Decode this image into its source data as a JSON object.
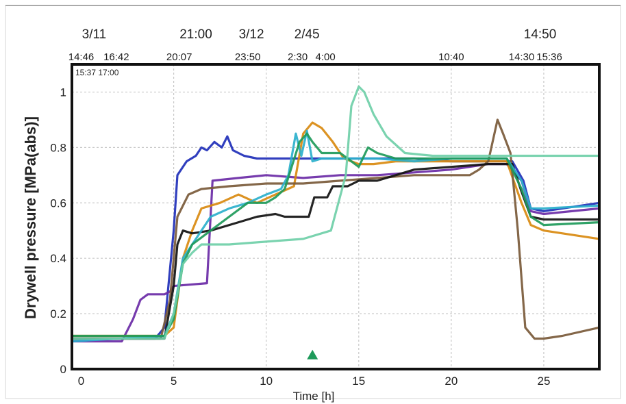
{
  "chart_data": {
    "type": "line",
    "title": "",
    "xlabel": "Time [h]",
    "ylabel": "Drywell pressure [MPa(abs)]",
    "xlim": [
      -0.5,
      28
    ],
    "ylim": [
      0,
      1.1
    ],
    "xticks": [
      0,
      5,
      10,
      15,
      20,
      25
    ],
    "yticks": [
      0,
      0.2,
      0.4,
      0.6,
      0.8,
      1
    ],
    "grid": true,
    "top_labels_row1": [
      {
        "text": "3/11",
        "x": 0.7
      },
      {
        "text": "21:00",
        "x": 6.2
      },
      {
        "text": "3/12",
        "x": 9.2
      },
      {
        "text": "2/45",
        "x": 12.2
      },
      {
        "text": "14:50",
        "x": 24.8
      }
    ],
    "top_labels_row2": [
      {
        "text": "14:46",
        "x": 0.0
      },
      {
        "text": "16:42",
        "x": 1.9
      },
      {
        "text": "20:07",
        "x": 5.3
      },
      {
        "text": "23:50",
        "x": 9.0
      },
      {
        "text": "2:30",
        "x": 11.7
      },
      {
        "text": "4:00",
        "x": 13.2
      },
      {
        "text": "10:40",
        "x": 20.0
      },
      {
        "text": "14:30",
        "x": 23.8
      },
      {
        "text": "15:36",
        "x": 25.3
      }
    ],
    "inner_label": "15:37 17:00",
    "series": [
      {
        "color": "#1f2fb8",
        "x": [
          -0.5,
          4,
          4.5,
          5,
          5.2,
          5.7,
          6.2,
          6.5,
          6.8,
          7.2,
          7.6,
          7.9,
          8.2,
          8.8,
          9.5,
          12,
          14,
          16,
          18,
          20,
          22,
          23.3,
          23.9,
          24.3,
          25,
          26,
          28
        ],
        "y": [
          0.11,
          0.11,
          0.15,
          0.5,
          0.7,
          0.75,
          0.77,
          0.8,
          0.79,
          0.82,
          0.8,
          0.84,
          0.79,
          0.77,
          0.76,
          0.76,
          0.76,
          0.76,
          0.76,
          0.75,
          0.75,
          0.75,
          0.68,
          0.58,
          0.57,
          0.58,
          0.6
        ]
      },
      {
        "color": "#6a2aa6",
        "x": [
          -0.5,
          2.2,
          2.8,
          3.2,
          3.6,
          4.5,
          4.8,
          5,
          6.8,
          7.1,
          8.5,
          10,
          12,
          14,
          16,
          18,
          20,
          22,
          23,
          23.8,
          24.3,
          25,
          28
        ],
        "y": [
          0.1,
          0.1,
          0.18,
          0.25,
          0.27,
          0.27,
          0.28,
          0.3,
          0.31,
          0.68,
          0.69,
          0.7,
          0.69,
          0.7,
          0.7,
          0.71,
          0.72,
          0.74,
          0.74,
          0.68,
          0.57,
          0.56,
          0.58
        ]
      },
      {
        "color": "#d98a10",
        "x": [
          -0.5,
          4.5,
          5,
          5.5,
          6,
          6.5,
          7.5,
          8.5,
          9.5,
          10.5,
          11.5,
          12,
          12.5,
          13,
          13.6,
          14.2,
          15,
          15.8,
          17,
          20,
          23,
          23.8,
          24.3,
          25,
          28
        ],
        "y": [
          0.12,
          0.12,
          0.15,
          0.4,
          0.5,
          0.58,
          0.6,
          0.63,
          0.6,
          0.63,
          0.66,
          0.85,
          0.89,
          0.87,
          0.82,
          0.76,
          0.74,
          0.74,
          0.75,
          0.75,
          0.75,
          0.6,
          0.52,
          0.5,
          0.47
        ]
      },
      {
        "color": "#7a5a3a",
        "x": [
          -0.5,
          4.3,
          4.8,
          5.2,
          5.8,
          6.5,
          8,
          10,
          12,
          14,
          16,
          18,
          20,
          21,
          21.5,
          22,
          22.5,
          22.8,
          23.2,
          23.6,
          24,
          24.5,
          25,
          26,
          28
        ],
        "y": [
          0.11,
          0.11,
          0.25,
          0.55,
          0.63,
          0.65,
          0.66,
          0.67,
          0.67,
          0.68,
          0.69,
          0.7,
          0.7,
          0.7,
          0.72,
          0.75,
          0.9,
          0.85,
          0.78,
          0.5,
          0.15,
          0.11,
          0.11,
          0.12,
          0.15
        ]
      },
      {
        "color": "#111111",
        "x": [
          -0.5,
          4.5,
          5,
          5.2,
          5.5,
          6,
          7,
          8.5,
          9.5,
          10.5,
          11,
          11.5,
          12.3,
          12.6,
          13.3,
          13.6,
          14.4,
          15,
          16,
          18,
          20,
          22,
          23.3,
          23.8,
          24.3,
          25,
          28
        ],
        "y": [
          0.11,
          0.11,
          0.3,
          0.45,
          0.5,
          0.49,
          0.5,
          0.53,
          0.55,
          0.56,
          0.55,
          0.55,
          0.55,
          0.62,
          0.62,
          0.66,
          0.66,
          0.68,
          0.68,
          0.72,
          0.73,
          0.74,
          0.74,
          0.64,
          0.55,
          0.54,
          0.54
        ]
      },
      {
        "color": "#2bb0cc",
        "x": [
          -0.5,
          4.5,
          5,
          5.5,
          6,
          7,
          8,
          9,
          10,
          10.8,
          11.2,
          11.6,
          11.9,
          12.2,
          12.5,
          13,
          14,
          16,
          18,
          20,
          23,
          23.8,
          24.3,
          25,
          28
        ],
        "y": [
          0.1,
          0.12,
          0.2,
          0.4,
          0.45,
          0.55,
          0.58,
          0.6,
          0.63,
          0.65,
          0.7,
          0.85,
          0.77,
          0.86,
          0.75,
          0.76,
          0.76,
          0.76,
          0.75,
          0.76,
          0.76,
          0.68,
          0.58,
          0.58,
          0.59
        ]
      },
      {
        "color": "#1e9a5a",
        "x": [
          -0.5,
          4.5,
          5,
          5.5,
          6,
          7,
          8,
          9,
          10,
          10.5,
          11,
          11.8,
          12.2,
          12.5,
          13,
          14,
          15,
          15.5,
          16,
          17,
          20,
          23,
          23.8,
          24.3,
          25,
          28
        ],
        "y": [
          0.12,
          0.12,
          0.18,
          0.38,
          0.45,
          0.5,
          0.55,
          0.6,
          0.6,
          0.62,
          0.65,
          0.82,
          0.85,
          0.82,
          0.78,
          0.78,
          0.73,
          0.8,
          0.78,
          0.76,
          0.76,
          0.76,
          0.65,
          0.55,
          0.52,
          0.53
        ]
      },
      {
        "color": "#6fcfa8",
        "x": [
          -0.5,
          4.5,
          5,
          5.5,
          6,
          6.5,
          8,
          10,
          12,
          13.5,
          14.3,
          14.6,
          15,
          15.3,
          15.8,
          16.5,
          17.5,
          19,
          21,
          23,
          24,
          25,
          28
        ],
        "y": [
          0.11,
          0.11,
          0.2,
          0.38,
          0.42,
          0.45,
          0.45,
          0.46,
          0.47,
          0.5,
          0.7,
          0.95,
          1.02,
          1.0,
          0.92,
          0.84,
          0.78,
          0.77,
          0.77,
          0.77,
          0.77,
          0.77,
          0.77
        ]
      }
    ],
    "marker": {
      "color": "#1e9a5a",
      "x": 12.5,
      "y": 0.05
    }
  }
}
